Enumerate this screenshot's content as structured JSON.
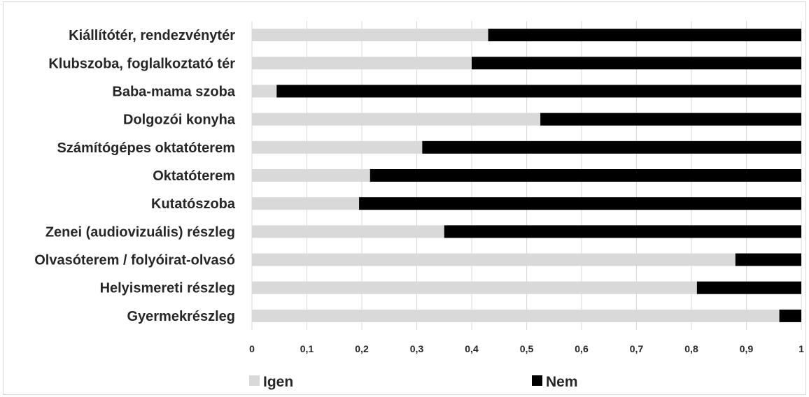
{
  "chart_data": {
    "type": "bar",
    "orientation": "horizontal",
    "stacked": true,
    "categories": [
      "Kiállítótér, rendezvénytér",
      "Klubszoba, foglalkoztató tér",
      "Baba-mama szoba",
      "Dolgozói konyha",
      "Számítógépes oktatóterem",
      "Oktatóterem",
      "Kutatószoba",
      "Zenei (audiovizuális) részleg",
      "Olvasóterem / folyóirat-olvasó",
      "Helyismereti részleg",
      "Gyermekrészleg"
    ],
    "series": [
      {
        "name": "Igen",
        "color": "#d9d9d9",
        "values": [
          0.43,
          0.4,
          0.045,
          0.525,
          0.31,
          0.215,
          0.195,
          0.35,
          0.88,
          0.81,
          0.96
        ]
      },
      {
        "name": "Nem",
        "color": "#000000",
        "values": [
          0.57,
          0.6,
          0.955,
          0.475,
          0.69,
          0.785,
          0.805,
          0.65,
          0.12,
          0.19,
          0.04
        ]
      }
    ],
    "xlim": [
      0,
      1
    ],
    "xticks": [
      "0",
      "0,1",
      "0,2",
      "0,3",
      "0,4",
      "0,5",
      "0,6",
      "0,7",
      "0,8",
      "0,9",
      "1"
    ],
    "grid": true,
    "legend_position": "bottom",
    "title": "",
    "xlabel": "",
    "ylabel": ""
  }
}
